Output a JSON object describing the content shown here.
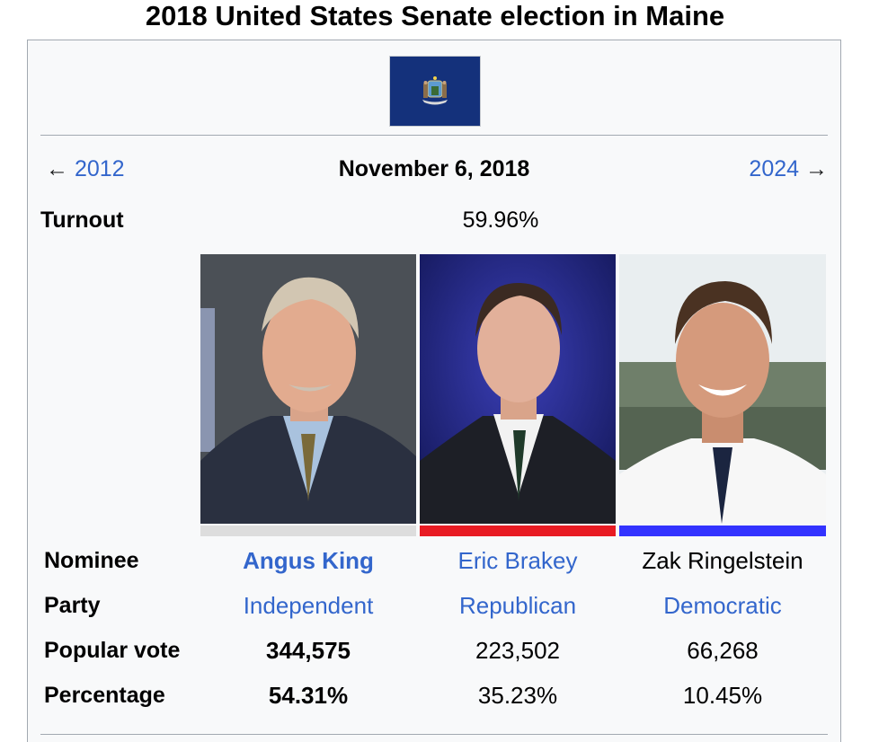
{
  "title": "2018 United States Senate election in Maine",
  "flag_icon": "maine-state-flag",
  "navigation": {
    "prev_arrow": "←",
    "prev_year": "2012",
    "next_year": "2024",
    "next_arrow": "→",
    "date": "November 6, 2018"
  },
  "turnout": {
    "label": "Turnout",
    "value": "59.96%"
  },
  "rows": {
    "nominee": "Nominee",
    "party": "Party",
    "popular_vote": "Popular vote",
    "percentage": "Percentage"
  },
  "candidates": [
    {
      "name": "Angus King",
      "party": "Independent",
      "votes": "344,575",
      "percentage": "54.31%",
      "party_color": "#dddddd"
    },
    {
      "name": "Eric Brakey",
      "party": "Republican",
      "votes": "223,502",
      "percentage": "35.23%",
      "party_color": "#e81b23"
    },
    {
      "name": "Zak Ringelstein",
      "party": "Democratic",
      "votes": "66,268",
      "percentage": "10.45%",
      "party_color": "#3333ff"
    }
  ]
}
